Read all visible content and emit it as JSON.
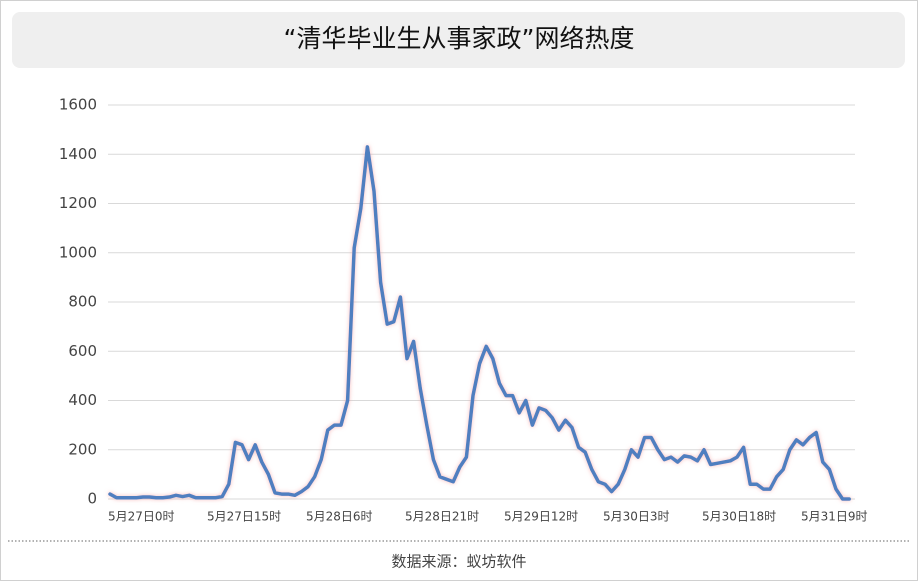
{
  "chart_data": {
    "type": "line",
    "title": "“清华毕业生从事家政”网络热度",
    "source": "数据来源：蚁坊软件",
    "categories": [
      "5月27日0时",
      null,
      null,
      null,
      null,
      null,
      null,
      null,
      null,
      null,
      null,
      null,
      null,
      null,
      null,
      "5月27日15时",
      null,
      null,
      null,
      null,
      null,
      null,
      null,
      null,
      null,
      null,
      null,
      null,
      null,
      null,
      "5月28日6时",
      null,
      null,
      null,
      null,
      null,
      null,
      null,
      null,
      null,
      null,
      null,
      null,
      null,
      null,
      "5月28日21时",
      null,
      null,
      null,
      null,
      null,
      null,
      null,
      null,
      null,
      null,
      null,
      null,
      null,
      null,
      "5月29日12时",
      null,
      null,
      null,
      null,
      null,
      null,
      null,
      null,
      null,
      null,
      null,
      null,
      null,
      null,
      "5月30日3时",
      null,
      null,
      null,
      null,
      null,
      null,
      null,
      null,
      null,
      null,
      null,
      null,
      null,
      null,
      "5月30日18时",
      null,
      null,
      null,
      null,
      null,
      null,
      null,
      null,
      null,
      null,
      null,
      null,
      null,
      null,
      "5月31日9时",
      null,
      null,
      null,
      null,
      null,
      null,
      null
    ],
    "series": [
      {
        "name": "网络热度",
        "color": "#4f7fc0",
        "values": [
          20,
          5,
          5,
          5,
          5,
          8,
          8,
          5,
          5,
          8,
          15,
          10,
          15,
          5,
          5,
          5,
          5,
          10,
          60,
          230,
          220,
          160,
          220,
          150,
          100,
          25,
          20,
          20,
          15,
          30,
          50,
          90,
          160,
          280,
          300,
          300,
          400,
          1020,
          1180,
          1430,
          1250,
          880,
          710,
          720,
          820,
          570,
          640,
          450,
          300,
          160,
          90,
          80,
          70,
          130,
          170,
          420,
          550,
          620,
          570,
          470,
          420,
          420,
          350,
          400,
          300,
          370,
          360,
          330,
          280,
          320,
          290,
          210,
          190,
          120,
          70,
          60,
          30,
          60,
          120,
          200,
          170,
          250,
          250,
          200,
          160,
          170,
          150,
          175,
          170,
          155,
          200,
          140,
          145,
          150,
          155,
          170,
          210,
          60,
          60,
          40,
          40,
          90,
          120,
          200,
          240,
          220,
          250,
          270,
          150,
          120,
          40,
          0,
          0
        ]
      }
    ],
    "ylim": [
      0,
      1600
    ],
    "yticks": [
      0,
      200,
      400,
      600,
      800,
      1000,
      1200,
      1400,
      1600
    ],
    "grid": true
  }
}
